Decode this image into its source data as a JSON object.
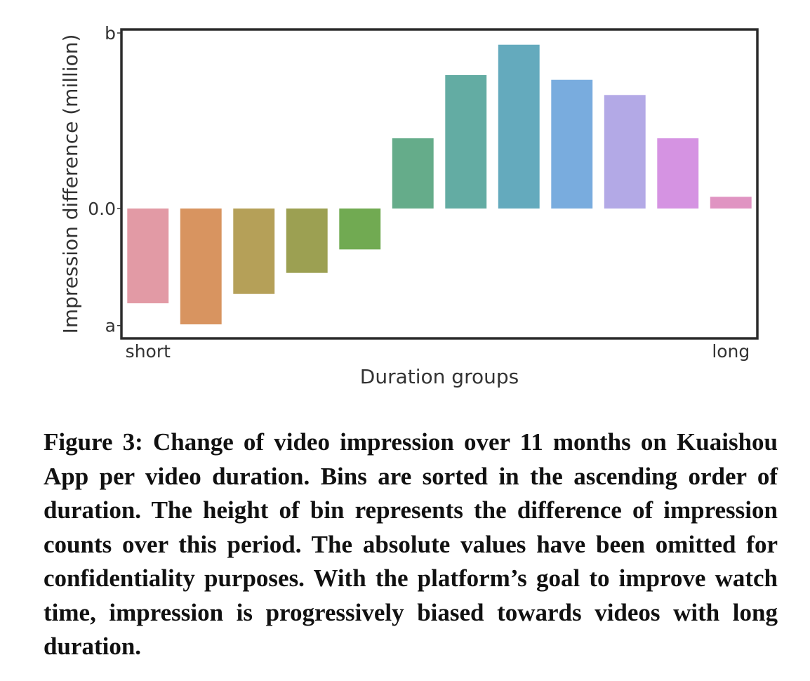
{
  "chart_data": {
    "type": "bar",
    "xlabel": "Duration groups",
    "ylabel": "Impression difference (million)",
    "x_tick_labels": [
      "short",
      "long"
    ],
    "y_tick_labels": [
      "a",
      "0.0",
      "b"
    ],
    "y_tick_values": [
      -1.0,
      0.0,
      1.5
    ],
    "ylim": [
      -1.11,
      1.53
    ],
    "grid": false,
    "values": [
      -0.81,
      -0.99,
      -0.73,
      -0.55,
      -0.35,
      0.6,
      1.14,
      1.4,
      1.1,
      0.97,
      0.6,
      0.1
    ],
    "colors": [
      "#e29aa5",
      "#d89460",
      "#b5a058",
      "#9ca052",
      "#71aa52",
      "#65ac8a",
      "#63aca3",
      "#64aabd",
      "#79acde",
      "#b3a9e6",
      "#d593e2",
      "#e094c2"
    ]
  },
  "caption": "Figure 3: Change of video impression over 11 months on Kuaishou App per video duration. Bins are sorted in the as­cending order of duration. The height of bin represents the difference of impression counts over this period. The abso­lute values have been omitted for confidentiality purposes. With the platform’s goal to improve watch time, impression is progressively biased towards videos with long duration."
}
